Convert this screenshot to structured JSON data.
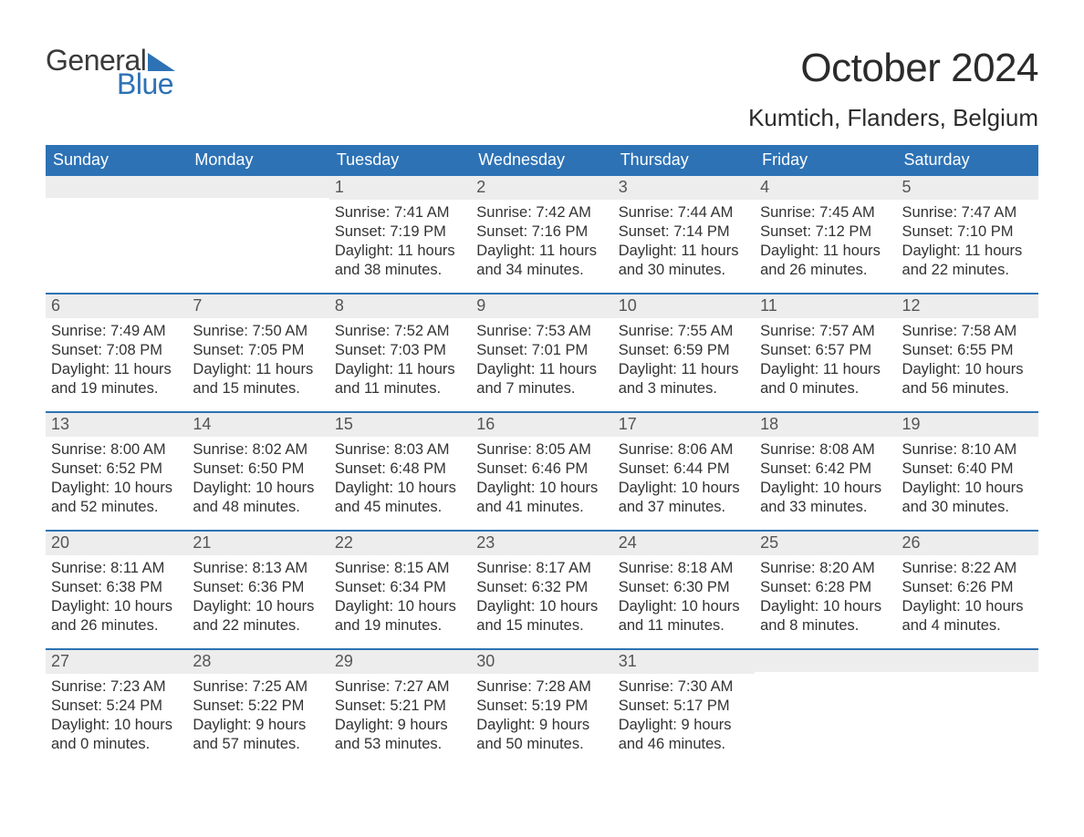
{
  "logo": {
    "line1": "General",
    "line2": "Blue",
    "accent_color": "#2d72b5",
    "text_color": "#3a3a3a"
  },
  "title": "October 2024",
  "location": "Kumtich, Flanders, Belgium",
  "colors": {
    "header_bg": "#2d72b5",
    "header_text": "#ffffff",
    "daynum_bg": "#ededed",
    "daynum_text": "#555555",
    "body_text": "#333333",
    "row_border": "#2d72b5",
    "page_bg": "#ffffff"
  },
  "typography": {
    "title_fontsize": 44,
    "location_fontsize": 26,
    "weekday_fontsize": 18,
    "daynum_fontsize": 18,
    "body_fontsize": 16.5,
    "font_family": "Arial"
  },
  "layout": {
    "columns": 7,
    "rows": 5,
    "cell_min_height": 128
  },
  "weekdays": [
    "Sunday",
    "Monday",
    "Tuesday",
    "Wednesday",
    "Thursday",
    "Friday",
    "Saturday"
  ],
  "weeks": [
    [
      {
        "day": "",
        "sunrise": "",
        "sunset": "",
        "daylight": ""
      },
      {
        "day": "",
        "sunrise": "",
        "sunset": "",
        "daylight": ""
      },
      {
        "day": "1",
        "sunrise": "Sunrise: 7:41 AM",
        "sunset": "Sunset: 7:19 PM",
        "daylight": "Daylight: 11 hours and 38 minutes."
      },
      {
        "day": "2",
        "sunrise": "Sunrise: 7:42 AM",
        "sunset": "Sunset: 7:16 PM",
        "daylight": "Daylight: 11 hours and 34 minutes."
      },
      {
        "day": "3",
        "sunrise": "Sunrise: 7:44 AM",
        "sunset": "Sunset: 7:14 PM",
        "daylight": "Daylight: 11 hours and 30 minutes."
      },
      {
        "day": "4",
        "sunrise": "Sunrise: 7:45 AM",
        "sunset": "Sunset: 7:12 PM",
        "daylight": "Daylight: 11 hours and 26 minutes."
      },
      {
        "day": "5",
        "sunrise": "Sunrise: 7:47 AM",
        "sunset": "Sunset: 7:10 PM",
        "daylight": "Daylight: 11 hours and 22 minutes."
      }
    ],
    [
      {
        "day": "6",
        "sunrise": "Sunrise: 7:49 AM",
        "sunset": "Sunset: 7:08 PM",
        "daylight": "Daylight: 11 hours and 19 minutes."
      },
      {
        "day": "7",
        "sunrise": "Sunrise: 7:50 AM",
        "sunset": "Sunset: 7:05 PM",
        "daylight": "Daylight: 11 hours and 15 minutes."
      },
      {
        "day": "8",
        "sunrise": "Sunrise: 7:52 AM",
        "sunset": "Sunset: 7:03 PM",
        "daylight": "Daylight: 11 hours and 11 minutes."
      },
      {
        "day": "9",
        "sunrise": "Sunrise: 7:53 AM",
        "sunset": "Sunset: 7:01 PM",
        "daylight": "Daylight: 11 hours and 7 minutes."
      },
      {
        "day": "10",
        "sunrise": "Sunrise: 7:55 AM",
        "sunset": "Sunset: 6:59 PM",
        "daylight": "Daylight: 11 hours and 3 minutes."
      },
      {
        "day": "11",
        "sunrise": "Sunrise: 7:57 AM",
        "sunset": "Sunset: 6:57 PM",
        "daylight": "Daylight: 11 hours and 0 minutes."
      },
      {
        "day": "12",
        "sunrise": "Sunrise: 7:58 AM",
        "sunset": "Sunset: 6:55 PM",
        "daylight": "Daylight: 10 hours and 56 minutes."
      }
    ],
    [
      {
        "day": "13",
        "sunrise": "Sunrise: 8:00 AM",
        "sunset": "Sunset: 6:52 PM",
        "daylight": "Daylight: 10 hours and 52 minutes."
      },
      {
        "day": "14",
        "sunrise": "Sunrise: 8:02 AM",
        "sunset": "Sunset: 6:50 PM",
        "daylight": "Daylight: 10 hours and 48 minutes."
      },
      {
        "day": "15",
        "sunrise": "Sunrise: 8:03 AM",
        "sunset": "Sunset: 6:48 PM",
        "daylight": "Daylight: 10 hours and 45 minutes."
      },
      {
        "day": "16",
        "sunrise": "Sunrise: 8:05 AM",
        "sunset": "Sunset: 6:46 PM",
        "daylight": "Daylight: 10 hours and 41 minutes."
      },
      {
        "day": "17",
        "sunrise": "Sunrise: 8:06 AM",
        "sunset": "Sunset: 6:44 PM",
        "daylight": "Daylight: 10 hours and 37 minutes."
      },
      {
        "day": "18",
        "sunrise": "Sunrise: 8:08 AM",
        "sunset": "Sunset: 6:42 PM",
        "daylight": "Daylight: 10 hours and 33 minutes."
      },
      {
        "day": "19",
        "sunrise": "Sunrise: 8:10 AM",
        "sunset": "Sunset: 6:40 PM",
        "daylight": "Daylight: 10 hours and 30 minutes."
      }
    ],
    [
      {
        "day": "20",
        "sunrise": "Sunrise: 8:11 AM",
        "sunset": "Sunset: 6:38 PM",
        "daylight": "Daylight: 10 hours and 26 minutes."
      },
      {
        "day": "21",
        "sunrise": "Sunrise: 8:13 AM",
        "sunset": "Sunset: 6:36 PM",
        "daylight": "Daylight: 10 hours and 22 minutes."
      },
      {
        "day": "22",
        "sunrise": "Sunrise: 8:15 AM",
        "sunset": "Sunset: 6:34 PM",
        "daylight": "Daylight: 10 hours and 19 minutes."
      },
      {
        "day": "23",
        "sunrise": "Sunrise: 8:17 AM",
        "sunset": "Sunset: 6:32 PM",
        "daylight": "Daylight: 10 hours and 15 minutes."
      },
      {
        "day": "24",
        "sunrise": "Sunrise: 8:18 AM",
        "sunset": "Sunset: 6:30 PM",
        "daylight": "Daylight: 10 hours and 11 minutes."
      },
      {
        "day": "25",
        "sunrise": "Sunrise: 8:20 AM",
        "sunset": "Sunset: 6:28 PM",
        "daylight": "Daylight: 10 hours and 8 minutes."
      },
      {
        "day": "26",
        "sunrise": "Sunrise: 8:22 AM",
        "sunset": "Sunset: 6:26 PM",
        "daylight": "Daylight: 10 hours and 4 minutes."
      }
    ],
    [
      {
        "day": "27",
        "sunrise": "Sunrise: 7:23 AM",
        "sunset": "Sunset: 5:24 PM",
        "daylight": "Daylight: 10 hours and 0 minutes."
      },
      {
        "day": "28",
        "sunrise": "Sunrise: 7:25 AM",
        "sunset": "Sunset: 5:22 PM",
        "daylight": "Daylight: 9 hours and 57 minutes."
      },
      {
        "day": "29",
        "sunrise": "Sunrise: 7:27 AM",
        "sunset": "Sunset: 5:21 PM",
        "daylight": "Daylight: 9 hours and 53 minutes."
      },
      {
        "day": "30",
        "sunrise": "Sunrise: 7:28 AM",
        "sunset": "Sunset: 5:19 PM",
        "daylight": "Daylight: 9 hours and 50 minutes."
      },
      {
        "day": "31",
        "sunrise": "Sunrise: 7:30 AM",
        "sunset": "Sunset: 5:17 PM",
        "daylight": "Daylight: 9 hours and 46 minutes."
      },
      {
        "day": "",
        "sunrise": "",
        "sunset": "",
        "daylight": ""
      },
      {
        "day": "",
        "sunrise": "",
        "sunset": "",
        "daylight": ""
      }
    ]
  ]
}
